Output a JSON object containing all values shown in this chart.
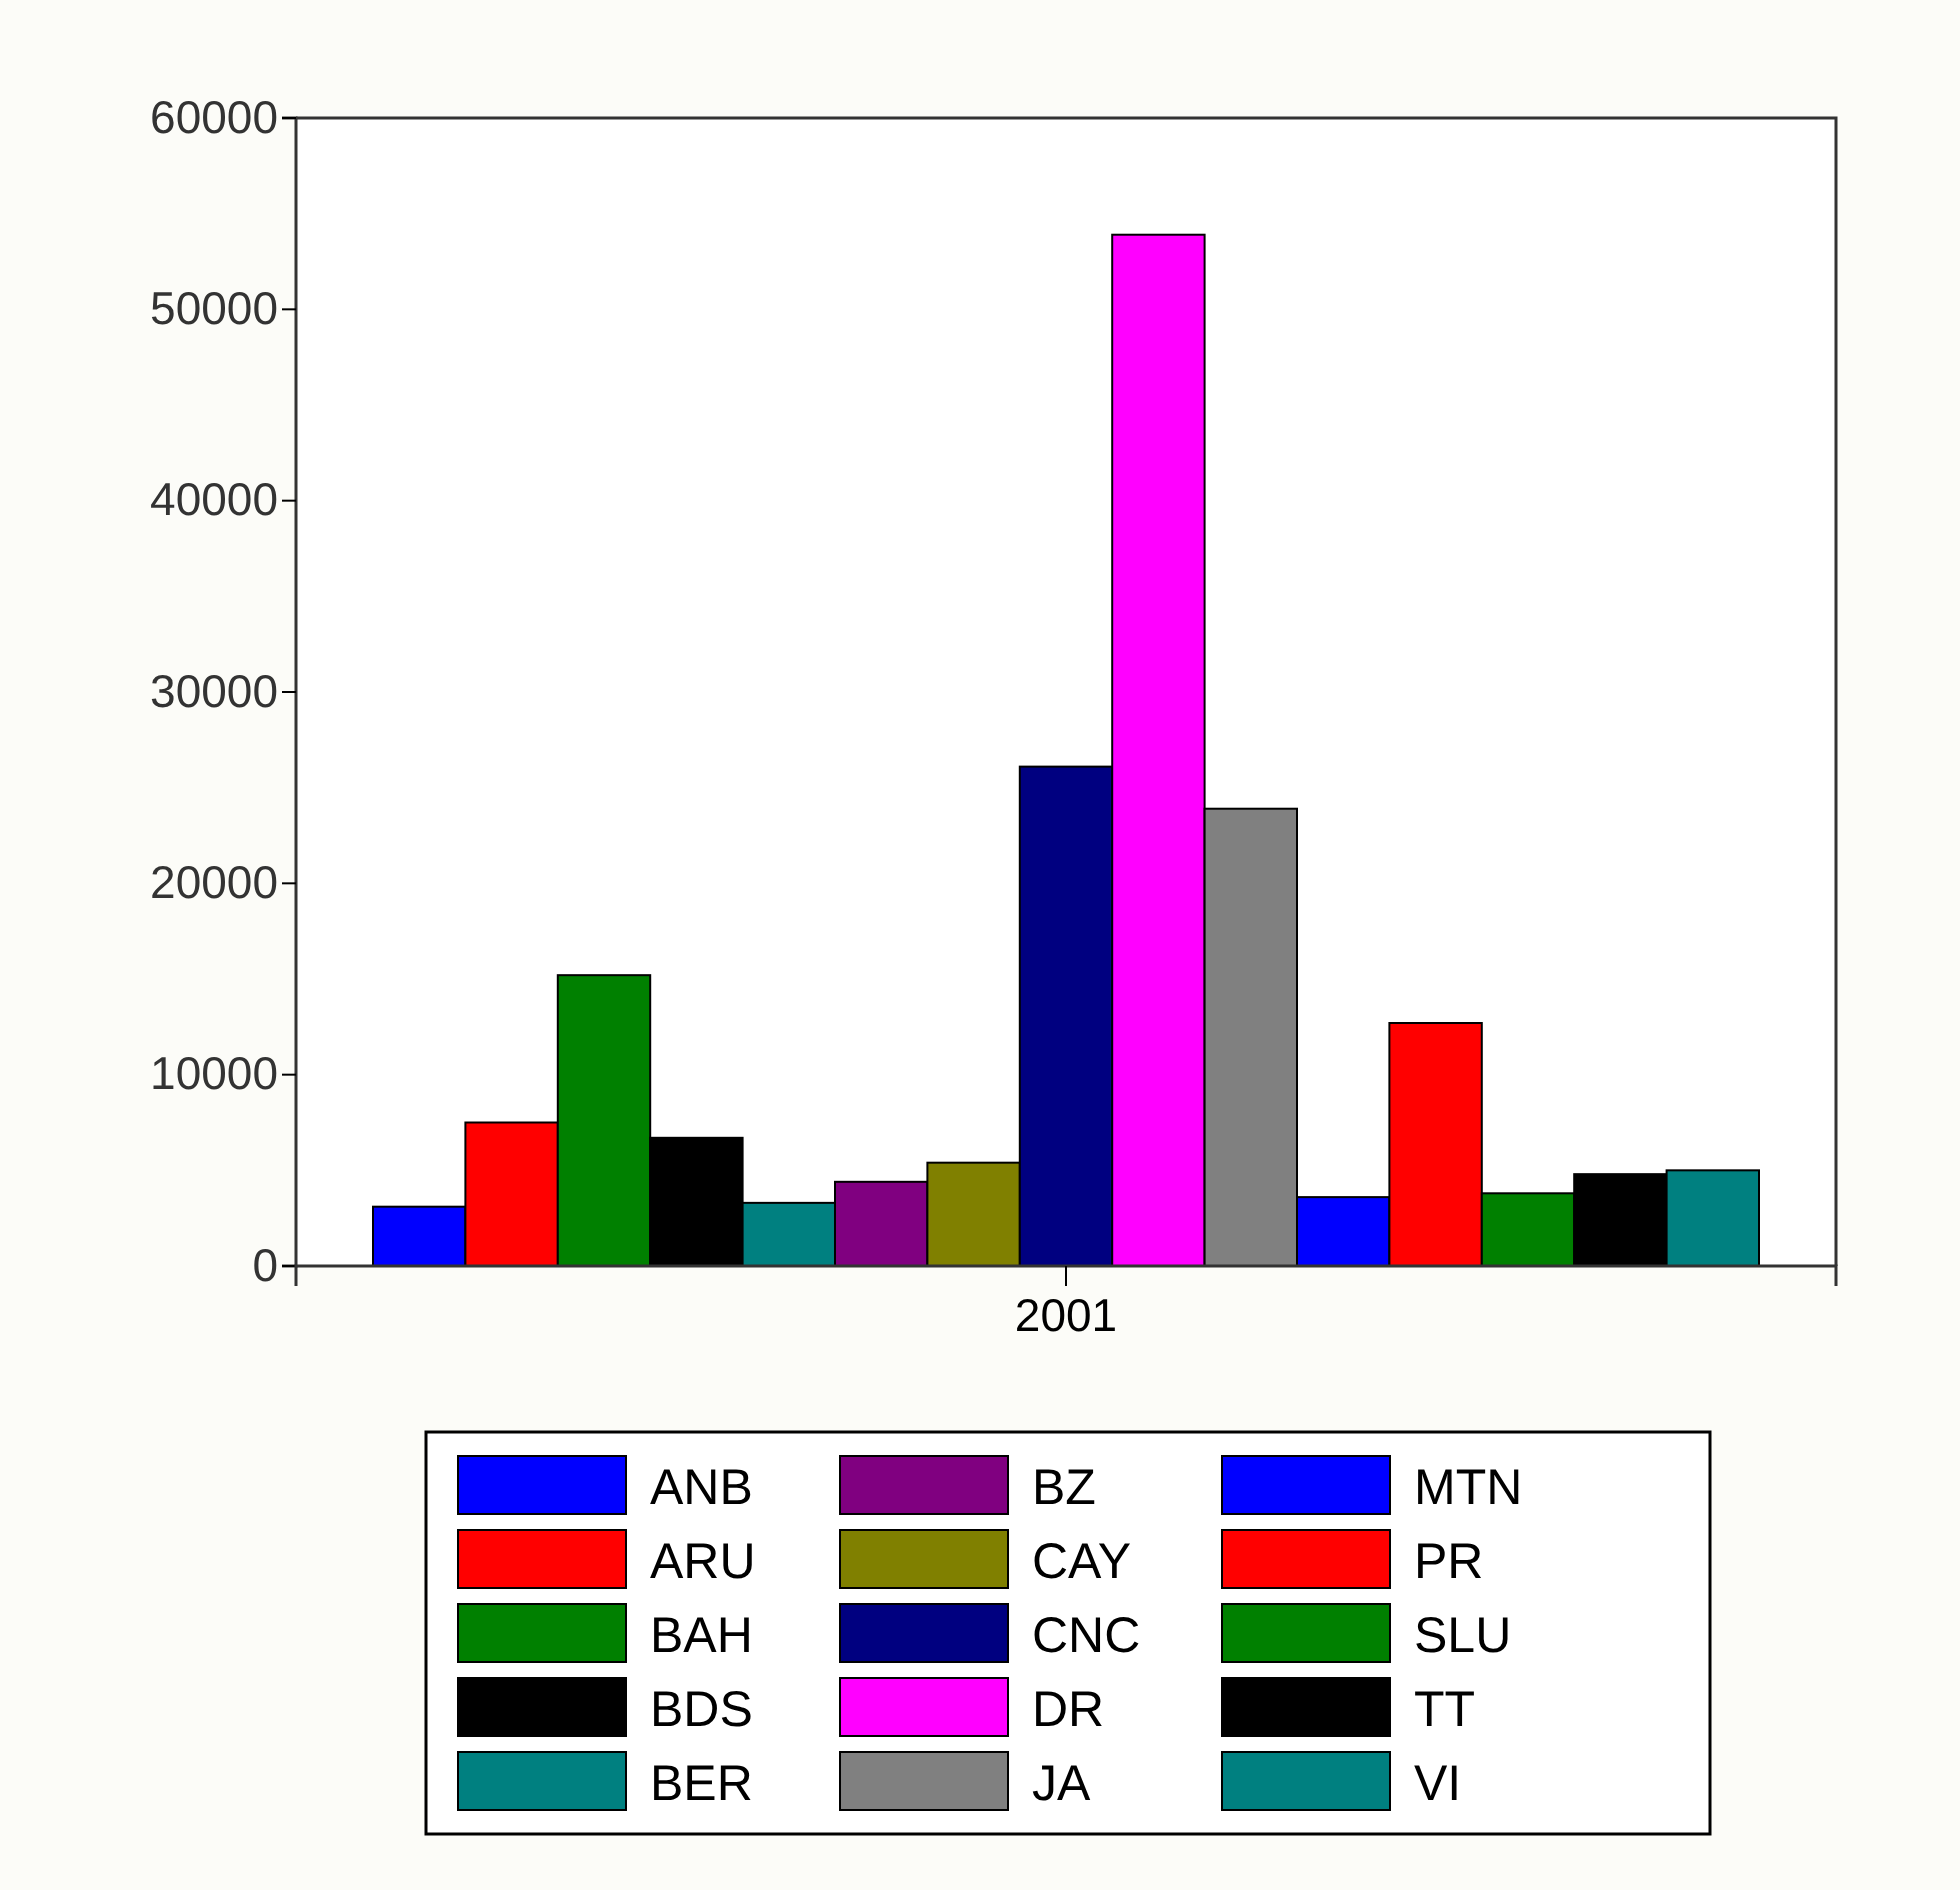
{
  "chart_data": {
    "type": "bar",
    "categories": [
      "2001"
    ],
    "series": [
      {
        "name": "ANB",
        "color": "#0000ff",
        "values": [
          3100
        ]
      },
      {
        "name": "ARU",
        "color": "#ff0000",
        "values": [
          7500
        ]
      },
      {
        "name": "BAH",
        "color": "#008000",
        "values": [
          15200
        ]
      },
      {
        "name": "BDS",
        "color": "#000000",
        "values": [
          6700
        ]
      },
      {
        "name": "BER",
        "color": "#008080",
        "values": [
          3300
        ]
      },
      {
        "name": "BZ",
        "color": "#800080",
        "values": [
          4400
        ]
      },
      {
        "name": "CAY",
        "color": "#808000",
        "values": [
          5400
        ]
      },
      {
        "name": "CNC",
        "color": "#000080",
        "values": [
          26100
        ]
      },
      {
        "name": "DR",
        "color": "#ff00ff",
        "values": [
          53900
        ]
      },
      {
        "name": "JA",
        "color": "#808080",
        "values": [
          23900
        ]
      },
      {
        "name": "MTN",
        "color": "#0000ff",
        "values": [
          3600
        ]
      },
      {
        "name": "PR",
        "color": "#ff0000",
        "values": [
          12700
        ]
      },
      {
        "name": "SLU",
        "color": "#008000",
        "values": [
          3800
        ]
      },
      {
        "name": "TT",
        "color": "#000000",
        "values": [
          4800
        ]
      },
      {
        "name": "VI",
        "color": "#008080",
        "values": [
          5000
        ]
      }
    ],
    "ylim": [
      0,
      60000
    ],
    "yticks": [
      0,
      10000,
      20000,
      30000,
      40000,
      50000,
      60000
    ],
    "grid": false,
    "legend": "bottom"
  }
}
